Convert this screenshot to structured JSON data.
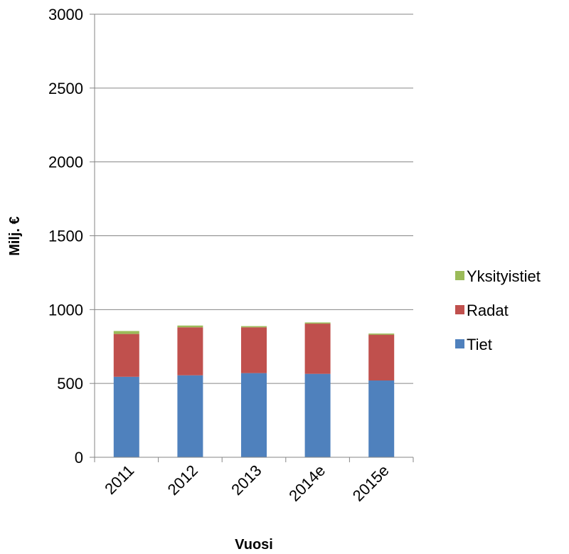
{
  "chart_data": {
    "type": "bar",
    "stacked": true,
    "categories": [
      "2011",
      "2012",
      "2013",
      "2014e",
      "2015e"
    ],
    "series": [
      {
        "name": "Tiet",
        "color": "#4F81BD",
        "values": [
          545,
          555,
          570,
          565,
          520
        ]
      },
      {
        "name": "Radat",
        "color": "#C0504D",
        "values": [
          290,
          325,
          310,
          340,
          310
        ]
      },
      {
        "name": "Yksityistiet",
        "color": "#9BBB59",
        "values": [
          20,
          12,
          8,
          8,
          8
        ]
      }
    ],
    "xlabel": "Vuosi",
    "ylabel": "Milj. €",
    "ylim": [
      0,
      3000
    ],
    "yticks": [
      0,
      500,
      1000,
      1500,
      2000,
      2500,
      3000
    ],
    "grid": true,
    "legend_position": "right"
  }
}
